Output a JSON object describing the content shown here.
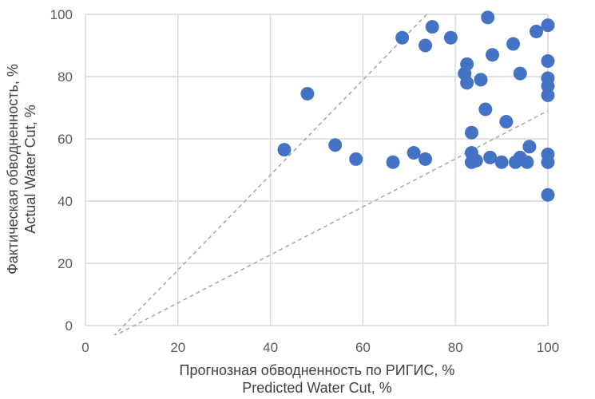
{
  "chart_data": {
    "type": "scatter",
    "xlabel": [
      "Прогнозная обводненность по РИГИС, %",
      "Predicted Water Cut, %"
    ],
    "ylabel": [
      "Фактическая обводненность, %",
      "Actual Water Cut, %"
    ],
    "xlim": [
      0,
      100
    ],
    "ylim": [
      0,
      100
    ],
    "xticks": [
      "0",
      "20",
      "40",
      "60",
      "80",
      "100"
    ],
    "yticks": [
      "0",
      "20",
      "40",
      "60",
      "80",
      "100"
    ],
    "grid": true,
    "point_color": "#4472C4",
    "gridline_color": "#d9d9d9",
    "reference_lines": [
      {
        "style": "dashed",
        "color": "#a6a6a6",
        "x": [
          6,
          100
        ],
        "y": [
          -3.5,
          140
        ]
      },
      {
        "style": "dashed",
        "color": "#a6a6a6",
        "x": [
          6,
          100
        ],
        "y": [
          -3.5,
          69
        ]
      }
    ],
    "points": [
      {
        "x": 43,
        "y": 56.5
      },
      {
        "x": 48,
        "y": 74.5
      },
      {
        "x": 54,
        "y": 58
      },
      {
        "x": 58.5,
        "y": 53.5
      },
      {
        "x": 66.5,
        "y": 52.5
      },
      {
        "x": 68.5,
        "y": 92.5
      },
      {
        "x": 71,
        "y": 55.5
      },
      {
        "x": 73.5,
        "y": 90
      },
      {
        "x": 73.5,
        "y": 53.5
      },
      {
        "x": 75,
        "y": 96
      },
      {
        "x": 79,
        "y": 92.5
      },
      {
        "x": 82,
        "y": 81
      },
      {
        "x": 82.5,
        "y": 84
      },
      {
        "x": 82.5,
        "y": 78
      },
      {
        "x": 83.5,
        "y": 62
      },
      {
        "x": 83.5,
        "y": 55.5
      },
      {
        "x": 83.5,
        "y": 52.5
      },
      {
        "x": 84.5,
        "y": 53
      },
      {
        "x": 85.5,
        "y": 79
      },
      {
        "x": 86.5,
        "y": 69.5
      },
      {
        "x": 87,
        "y": 99
      },
      {
        "x": 87.5,
        "y": 54
      },
      {
        "x": 88,
        "y": 87
      },
      {
        "x": 90,
        "y": 52.5
      },
      {
        "x": 91,
        "y": 65.5
      },
      {
        "x": 92.5,
        "y": 90.5
      },
      {
        "x": 93,
        "y": 52.5
      },
      {
        "x": 94,
        "y": 54
      },
      {
        "x": 94,
        "y": 81
      },
      {
        "x": 95.5,
        "y": 52.5
      },
      {
        "x": 96,
        "y": 57.5
      },
      {
        "x": 97.5,
        "y": 94.5
      },
      {
        "x": 100,
        "y": 96.5
      },
      {
        "x": 100,
        "y": 85
      },
      {
        "x": 100,
        "y": 79.5
      },
      {
        "x": 100,
        "y": 77
      },
      {
        "x": 100,
        "y": 74
      },
      {
        "x": 100,
        "y": 55
      },
      {
        "x": 100,
        "y": 52.5
      },
      {
        "x": 100,
        "y": 42
      }
    ]
  }
}
